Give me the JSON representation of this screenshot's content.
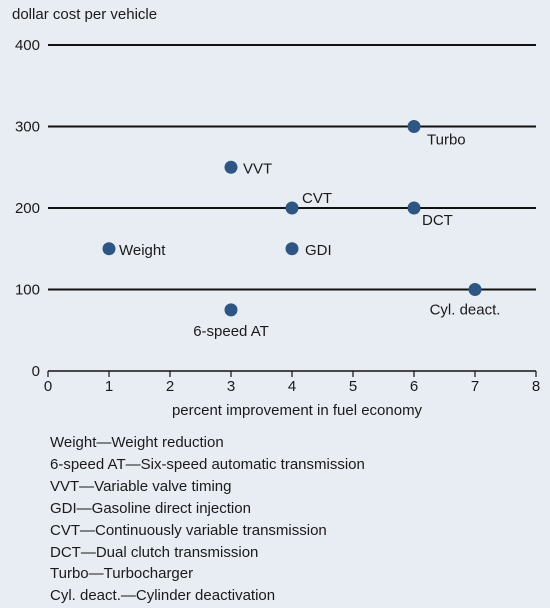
{
  "chart_data": {
    "type": "scatter",
    "title": "",
    "ylabel": "dollar cost per vehicle",
    "xlabel": "percent improvement in fuel economy",
    "xlim": [
      0,
      8
    ],
    "ylim": [
      0,
      400
    ],
    "xticks": [
      "0",
      "1",
      "2",
      "3",
      "4",
      "5",
      "6",
      "7",
      "8"
    ],
    "yticks": [
      "0",
      "100",
      "200",
      "300",
      "400"
    ],
    "grid": "horizontal",
    "point_color": "#2f5582",
    "points": [
      {
        "label": "Weight",
        "x": 1,
        "y": 150
      },
      {
        "label": "6-speed AT",
        "x": 3,
        "y": 75
      },
      {
        "label": "VVT",
        "x": 3,
        "y": 250
      },
      {
        "label": "GDI",
        "x": 4,
        "y": 150
      },
      {
        "label": "CVT",
        "x": 4,
        "y": 200
      },
      {
        "label": "DCT",
        "x": 6,
        "y": 200
      },
      {
        "label": "Turbo",
        "x": 6,
        "y": 300
      },
      {
        "label": "Cyl. deact.",
        "x": 7,
        "y": 100
      }
    ]
  },
  "notes": [
    "Weight—Weight reduction",
    "6-speed AT—Six-speed automatic transmission",
    "VVT—Variable valve timing",
    "GDI—Gasoline direct injection",
    "CVT—Continuously variable transmission",
    "DCT—Dual clutch transmission",
    "Turbo—Turbocharger",
    "Cyl. deact.—Cylinder deactivation"
  ]
}
